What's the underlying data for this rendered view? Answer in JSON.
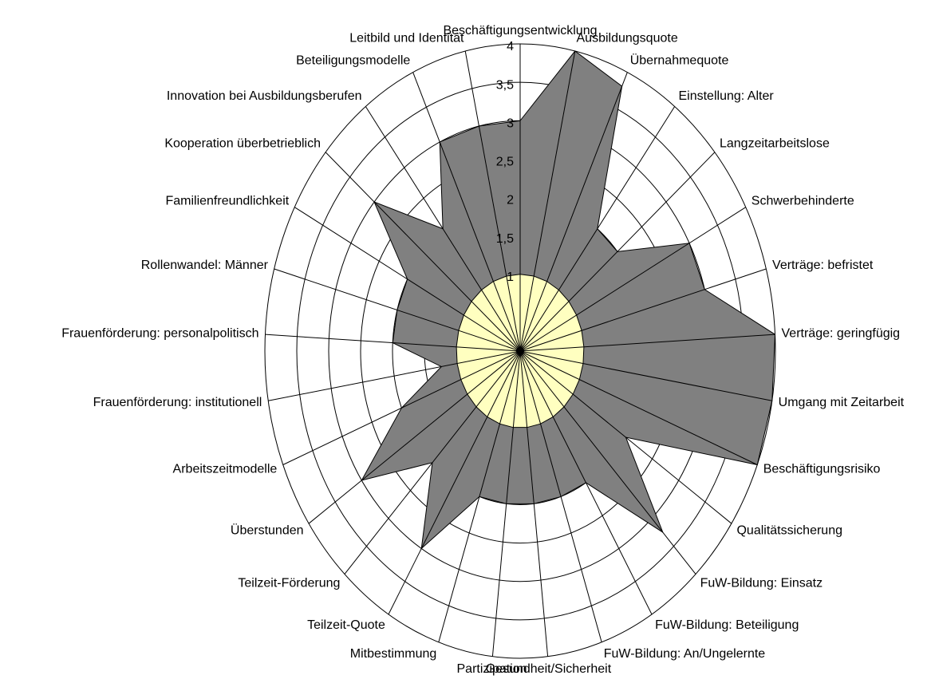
{
  "chart_data": {
    "type": "radar",
    "categories": [
      "Beschäftigungsentwicklung",
      "Ausbildungsquote",
      "Übernahmequote",
      "Einstellung: Alter",
      "Langzeitarbeitslose",
      "Schwerbehinderte",
      "Verträge: befristet",
      "Verträge: geringfügig",
      "Umgang mit Zeitarbeit",
      "Beschäftigungsrisiko",
      "Qualitätssicherung",
      "FuW-Bildung: Einsatz",
      "FuW-Bildung: Beteiligung",
      "FuW-Bildung: An/Ungelernte",
      "Gesundheit/Sicherheit",
      "Partizipation",
      "Mitbestimmung",
      "Teilzeit-Quote",
      "Teilzeit-Förderung",
      "Überstunden",
      "Arbeitszeitmodelle",
      "Frauenförderung: institutionell",
      "Frauenförderung: personalpolitisch",
      "Rollenwandel: Männer",
      "Familienfreundlichkeit",
      "Kooperation überbetrieblich",
      "Innovation bei Ausbildungsberufen",
      "Beteiligungsmodelle",
      "Leitbild und Identität"
    ],
    "series": [
      {
        "color": "#808080",
        "values": [
          3,
          4,
          3.8,
          2,
          2,
          3,
          3,
          4,
          4,
          4,
          2,
          3.25,
          2,
          2,
          2,
          2,
          2,
          3,
          2,
          3,
          2,
          1.25,
          2,
          2,
          2,
          3,
          2,
          3,
          3
        ]
      },
      {
        "color": "#ffffc0",
        "values": [
          1,
          1,
          1,
          1,
          1,
          1,
          1,
          1,
          1,
          1,
          1,
          1,
          1,
          1,
          1,
          1,
          1,
          1,
          1,
          1,
          1,
          1,
          1,
          1,
          1,
          1,
          1,
          1,
          1
        ]
      }
    ],
    "rlim": [
      0,
      4
    ],
    "rticks": [
      1,
      {
        "value": 1.5,
        "label": "1,5"
      },
      2,
      {
        "value": 2.5,
        "label": "2,5"
      },
      3,
      {
        "value": 3.5,
        "label": "3,5"
      },
      4
    ]
  }
}
